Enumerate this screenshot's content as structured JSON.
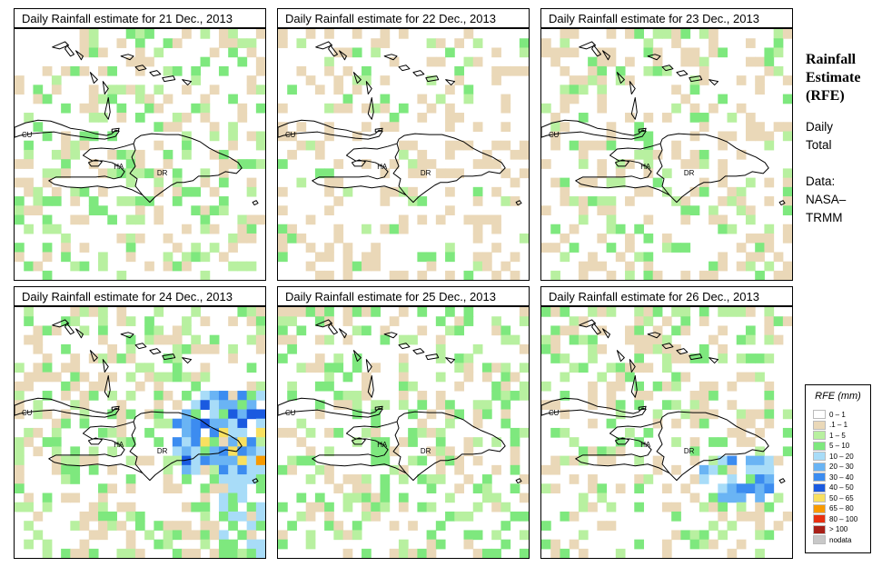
{
  "panels": [
    {
      "title": "Daily Rainfall estimate for  21 Dec., 2013",
      "seed": 21,
      "density": 0.34,
      "green_ratio": 0.55,
      "blob": null
    },
    {
      "title": "Daily Rainfall estimate for  22 Dec., 2013",
      "seed": 22,
      "density": 0.3,
      "green_ratio": 0.25,
      "blob": null
    },
    {
      "title": "Daily Rainfall estimate for  23 Dec., 2013",
      "seed": 23,
      "density": 0.32,
      "green_ratio": 0.35,
      "blob": null
    },
    {
      "title": "Daily Rainfall estimate for  24 Dec., 2013",
      "seed": 24,
      "density": 0.45,
      "green_ratio": 0.55,
      "blob": "east-heavy"
    },
    {
      "title": "Daily Rainfall estimate for  25 Dec., 2013",
      "seed": 25,
      "density": 0.4,
      "green_ratio": 0.55,
      "blob": null
    },
    {
      "title": "Daily Rainfall estimate for  26 Dec., 2013",
      "seed": 26,
      "density": 0.38,
      "green_ratio": 0.5,
      "blob": "south-east"
    }
  ],
  "map_labels": {
    "cuba": "CU",
    "haiti": "HA",
    "dominican_republic": "DR"
  },
  "side": {
    "title_lines": [
      "Rainfall",
      "Estimate",
      "(RFE)"
    ],
    "period_lines": [
      "Daily",
      "Total"
    ],
    "source_lines": [
      "Data:",
      "NASA–",
      "TRMM"
    ]
  },
  "legend": {
    "title": "RFE (mm)",
    "classes": [
      {
        "label": "0 – 1",
        "color": "#ffffff"
      },
      {
        "label": ".1 – 1",
        "color": "#ead8b8"
      },
      {
        "label": "1 – 5",
        "color": "#b8f0a0"
      },
      {
        "label": "5 – 10",
        "color": "#7ee87e"
      },
      {
        "label": "10 – 20",
        "color": "#a8dcf8"
      },
      {
        "label": "20 – 30",
        "color": "#6ab4f4"
      },
      {
        "label": "30 – 40",
        "color": "#3c8cf0"
      },
      {
        "label": "40 – 50",
        "color": "#1a5ae0"
      },
      {
        "label": "50 – 65",
        "color": "#f8e060"
      },
      {
        "label": "65 – 80",
        "color": "#f89a00"
      },
      {
        "label": "80 – 100",
        "color": "#e83010"
      },
      {
        "label": "> 100",
        "color": "#a82018"
      },
      {
        "label": "nodata",
        "color": "#c8c8c8"
      }
    ]
  }
}
